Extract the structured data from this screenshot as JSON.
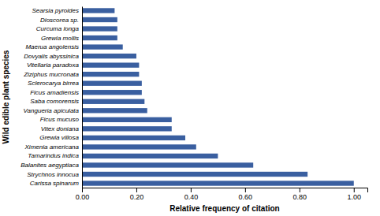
{
  "chart_data": {
    "type": "bar",
    "orientation": "horizontal",
    "categories": [
      "Carissa spinarum",
      "Strychnos innocua",
      "Balanites aegyptiaca",
      "Tamarindus indica",
      "Ximenia americana",
      "Grewia villosa",
      "Vitex doniana",
      "Ficus mucuso",
      "Vangueria apiculata",
      "Saba comorensis",
      "Ficus amadiensis",
      "Sclerocarya birrea",
      "Ziziphus mucronata",
      "Vitellaria paradoxa",
      "Dovyalis abyssinica",
      "Maerua angolensis",
      "Grewia mollis",
      "Curcuma longa",
      "Dioscorea sp.",
      "Searsia pyroides"
    ],
    "values": [
      1.0,
      0.83,
      0.63,
      0.5,
      0.42,
      0.38,
      0.33,
      0.33,
      0.24,
      0.23,
      0.22,
      0.22,
      0.21,
      0.21,
      0.2,
      0.15,
      0.13,
      0.13,
      0.13,
      0.12
    ],
    "color": "#3a5fa0",
    "xlabel": "Relative frequency of citation",
    "ylabel": "Wild edible plant species",
    "xlim": [
      0.0,
      1.05
    ],
    "xticks": [
      {
        "value": 0.0,
        "label": "0.00"
      },
      {
        "value": 0.2,
        "label": "0.20"
      },
      {
        "value": 0.4,
        "label": "0.40"
      },
      {
        "value": 0.6,
        "label": "0.60"
      },
      {
        "value": 0.8,
        "label": "0.80"
      },
      {
        "value": 1.0,
        "label": "1.00"
      }
    ],
    "grid": false
  }
}
